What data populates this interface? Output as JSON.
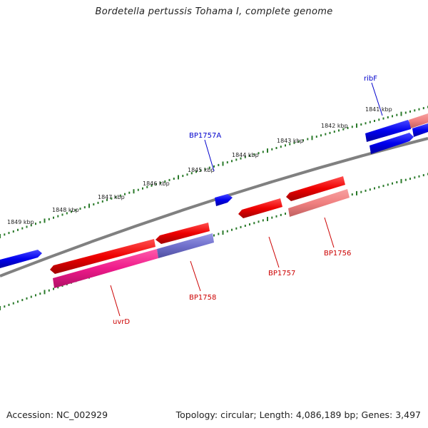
{
  "title": "Bordetella pertussis Tohama I, complete genome",
  "footer": {
    "accession": "Accession: NC_002929",
    "topology": "Topology: circular; Length: 4,086,189 bp; Genes: 3,497"
  },
  "colors": {
    "backbone": "#808080",
    "ticks": "#2a7a2a",
    "forward_gene": "#0000ee",
    "reverse_gene": "#ee0000",
    "reverse_gene_light": "#f08080",
    "magenta": "#ee1a8a",
    "purple": "#7070cc",
    "label_blue": "#0000cc",
    "label_red": "#cc0000"
  },
  "scale_labels": [
    "1849 kbp",
    "1848 kbp",
    "1847 kbp",
    "1846 kbp",
    "1845 kbp",
    "1844 kbp",
    "1843 kbp",
    "1842 kbp",
    "1841 kbp"
  ],
  "gene_labels": {
    "ribF": "ribF",
    "BP1757A": "BP1757A",
    "BP1756": "BP1756",
    "BP1757": "BP1757",
    "BP1758": "BP1758",
    "uvrD": "uvrD"
  }
}
